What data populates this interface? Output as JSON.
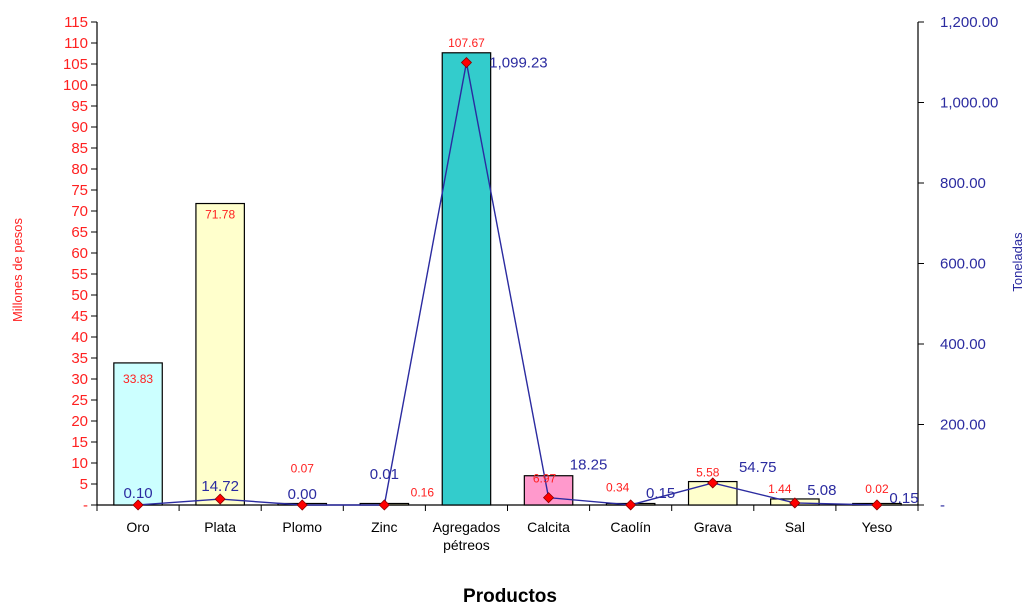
{
  "chart_data": {
    "type": "bar",
    "title": "",
    "xlabel": "Productos",
    "ylabel": "Millones de pesos",
    "y2label": "Toneladas",
    "categories": [
      "Oro",
      "Plata",
      "Plomo",
      "Zinc",
      "Agregados pétreos",
      "Calcita",
      "Caolín",
      "Grava",
      "Sal",
      "Yeso"
    ],
    "ylim": [
      0,
      115
    ],
    "y2lim": [
      0,
      1200
    ],
    "left_ticks": [
      "-",
      "5",
      "10",
      "15",
      "20",
      "25",
      "30",
      "35",
      "40",
      "45",
      "50",
      "55",
      "60",
      "65",
      "70",
      "75",
      "80",
      "85",
      "90",
      "95",
      "100",
      "105",
      "110",
      "115"
    ],
    "right_ticks": [
      "-",
      "200.00",
      "400.00",
      "600.00",
      "800.00",
      "1,000.00",
      "1,200.00"
    ],
    "series": [
      {
        "axis": "left",
        "kind": "bar",
        "values": [
          33.83,
          71.78,
          0.07,
          0.16,
          107.67,
          6.97,
          0.34,
          5.58,
          1.44,
          0.02
        ],
        "labels": [
          "33.83",
          "71.78",
          "0.07",
          "0.16",
          "107.67",
          "6.97",
          "0.34",
          "5.58",
          "1.44",
          "0.02"
        ],
        "colors": [
          "#ccffff",
          "#ffffcc",
          "#ffffcc",
          "#ffffcc",
          "#33cccc",
          "#ff99cc",
          "#ffffcc",
          "#ffffcc",
          "#ffffcc",
          "#ffffcc"
        ]
      },
      {
        "axis": "right",
        "kind": "line",
        "values": [
          0.1,
          14.72,
          0.0,
          0.01,
          1099.23,
          18.25,
          0.15,
          54.75,
          5.08,
          0.15
        ],
        "labels": [
          "0.10",
          "14.72",
          "0.00",
          "0.01",
          "1,099.23",
          "18.25",
          "0.15",
          "54.75",
          "5.08",
          "0.15"
        ],
        "line_color": "#2b2ba0",
        "marker_color": "#ff0000"
      }
    ]
  }
}
